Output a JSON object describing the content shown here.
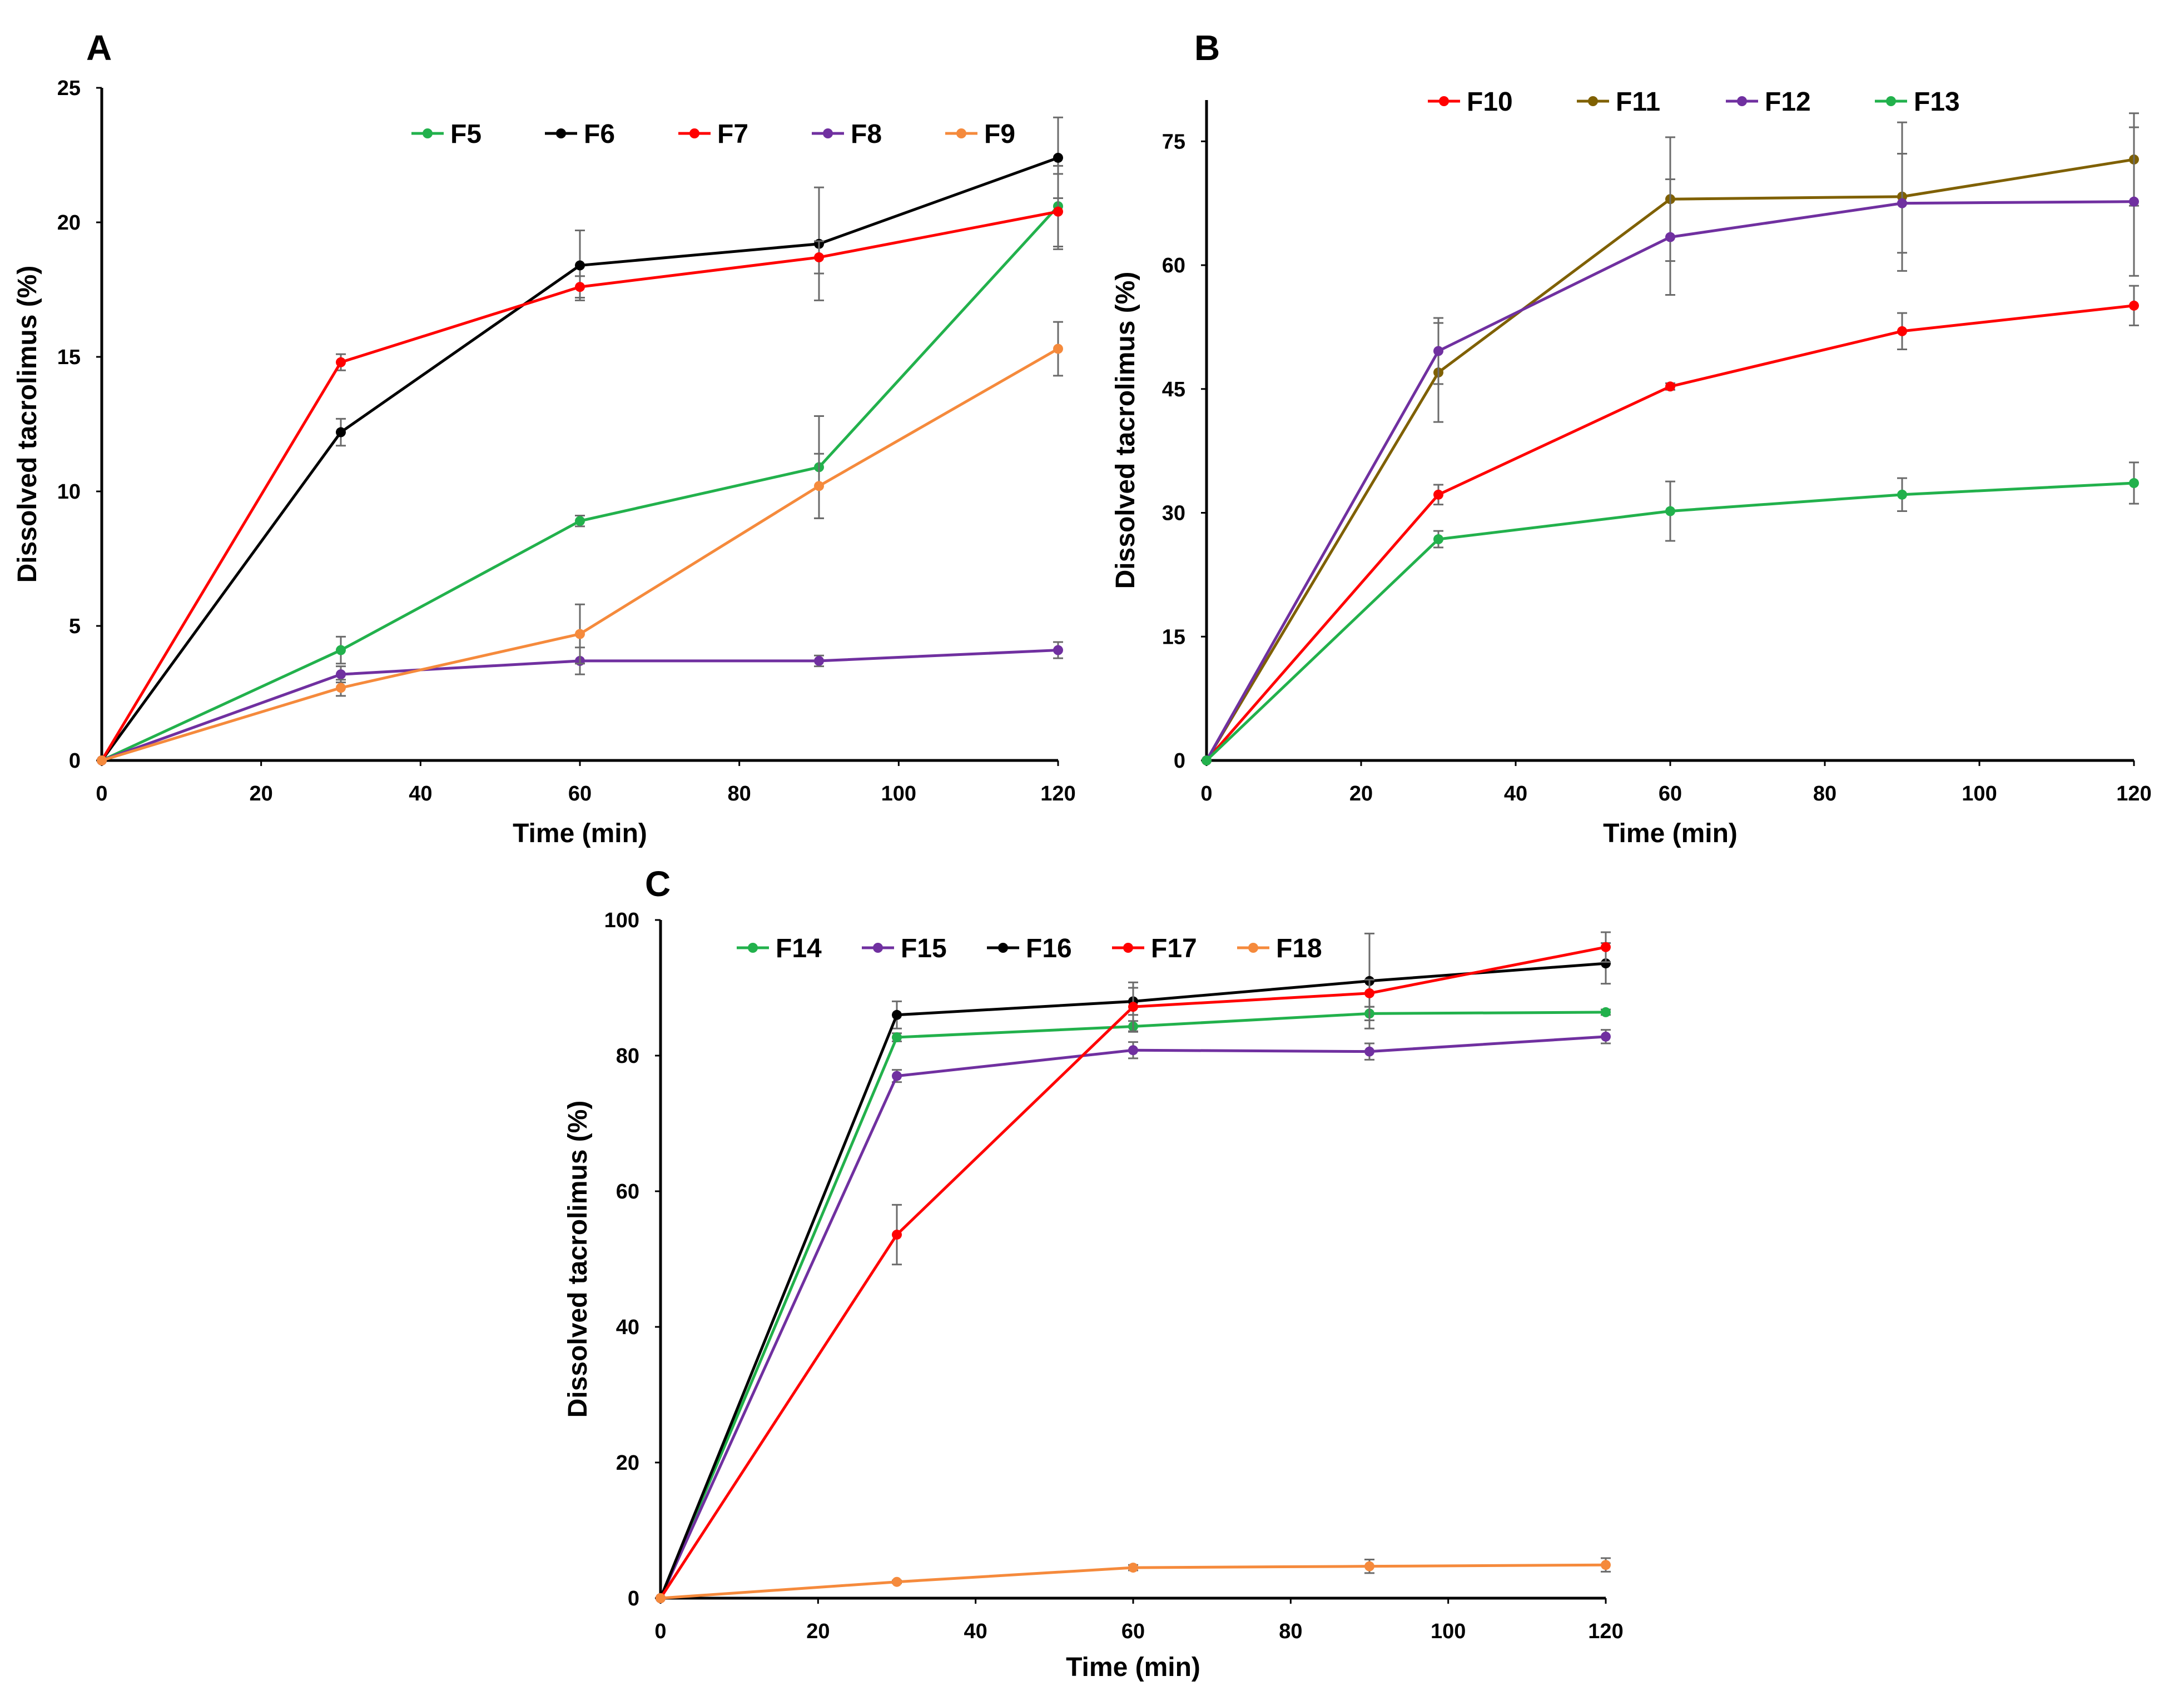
{
  "figure": {
    "panels": [
      "A",
      "B",
      "C"
    ]
  },
  "chart_data": [
    {
      "panel_label": "A",
      "type": "line",
      "xlabel": "Time (min)",
      "ylabel": "Dissolved tacrolimus  (%)",
      "xlim": [
        0,
        120
      ],
      "ylim": [
        0,
        25
      ],
      "xticks": [
        0,
        20,
        40,
        60,
        80,
        100,
        120
      ],
      "yticks": [
        0,
        5,
        10,
        15,
        20,
        25
      ],
      "grid": false,
      "legend_position": "top",
      "x": [
        0,
        30,
        60,
        90,
        120
      ],
      "series": [
        {
          "name": "F5",
          "color": "#22b14c",
          "values": [
            0,
            4.1,
            8.9,
            10.9,
            20.6
          ],
          "errors": [
            0,
            0.5,
            0.2,
            1.9,
            1.5
          ]
        },
        {
          "name": "F6",
          "color": "#000000",
          "values": [
            0,
            12.2,
            18.4,
            19.2,
            22.4
          ],
          "errors": [
            0,
            0.5,
            1.3,
            2.1,
            1.5
          ]
        },
        {
          "name": "F7",
          "color": "#ff0000",
          "values": [
            0,
            14.8,
            17.6,
            18.7,
            20.4
          ],
          "errors": [
            0,
            0.3,
            0.4,
            0.6,
            1.4
          ]
        },
        {
          "name": "F8",
          "color": "#7030a0",
          "values": [
            0,
            3.2,
            3.7,
            3.7,
            4.1
          ],
          "errors": [
            0,
            0.3,
            0.5,
            0.2,
            0.3
          ]
        },
        {
          "name": "F9",
          "color": "#f58a3c",
          "values": [
            0,
            2.7,
            4.7,
            10.2,
            15.3
          ],
          "errors": [
            0,
            0.3,
            1.1,
            1.2,
            1.0
          ]
        }
      ]
    },
    {
      "panel_label": "B",
      "type": "line",
      "xlabel": "Time (min)",
      "ylabel": "Dissolved tacrolimus (%)",
      "xlim": [
        0,
        120
      ],
      "ylim": [
        0,
        80
      ],
      "xticks": [
        0,
        20,
        40,
        60,
        80,
        100,
        120
      ],
      "yticks": [
        0,
        15,
        30,
        45,
        60,
        75
      ],
      "grid": false,
      "legend_position": "top",
      "x": [
        0,
        30,
        60,
        90,
        120
      ],
      "series": [
        {
          "name": "F10",
          "color": "#ff0000",
          "values": [
            0,
            32.2,
            45.3,
            52.0,
            55.1
          ],
          "errors": [
            0,
            1.2,
            0.4,
            2.2,
            2.4
          ]
        },
        {
          "name": "F11",
          "color": "#7f6000",
          "values": [
            0,
            47.0,
            68.0,
            68.3,
            72.8
          ],
          "errors": [
            0,
            6.0,
            7.5,
            9.0,
            5.6
          ]
        },
        {
          "name": "F12",
          "color": "#7030a0",
          "values": [
            0,
            49.6,
            63.4,
            67.5,
            67.7
          ],
          "errors": [
            0,
            4.0,
            7.0,
            6.0,
            9.0
          ]
        },
        {
          "name": "F13",
          "color": "#22b14c",
          "values": [
            0,
            26.8,
            30.2,
            32.2,
            33.6
          ],
          "errors": [
            0,
            1.0,
            3.6,
            2.0,
            2.5
          ]
        }
      ]
    },
    {
      "panel_label": "C",
      "type": "line",
      "xlabel": "Time (min)",
      "ylabel": "Dissolved tacrolimus (%)",
      "xlim": [
        0,
        120
      ],
      "ylim": [
        0,
        100
      ],
      "xticks": [
        0,
        20,
        40,
        60,
        80,
        100,
        120
      ],
      "yticks": [
        0,
        20,
        40,
        60,
        80,
        100
      ],
      "grid": false,
      "legend_position": "top",
      "x": [
        0,
        30,
        60,
        90,
        120
      ],
      "series": [
        {
          "name": "F14",
          "color": "#22b14c",
          "values": [
            0,
            82.7,
            84.3,
            86.2,
            86.4
          ],
          "errors": [
            0,
            0.6,
            0.8,
            1.0,
            0.4
          ]
        },
        {
          "name": "F15",
          "color": "#7030a0",
          "values": [
            0,
            77.0,
            80.8,
            80.6,
            82.8
          ],
          "errors": [
            0,
            0.9,
            1.2,
            1.2,
            1.0
          ]
        },
        {
          "name": "F16",
          "color": "#000000",
          "values": [
            0,
            86.0,
            88.0,
            91.0,
            93.6
          ],
          "errors": [
            0,
            2.0,
            2.0,
            7.0,
            3.0
          ]
        },
        {
          "name": "F17",
          "color": "#ff0000",
          "values": [
            0,
            53.6,
            87.2,
            89.2,
            96.0
          ],
          "errors": [
            0,
            4.4,
            3.6,
            2.0,
            2.2
          ]
        },
        {
          "name": "F18",
          "color": "#f58a3c",
          "values": [
            0,
            2.4,
            4.5,
            4.7,
            4.9
          ],
          "errors": [
            0,
            0.2,
            0.4,
            1.0,
            1.0
          ]
        }
      ]
    }
  ]
}
